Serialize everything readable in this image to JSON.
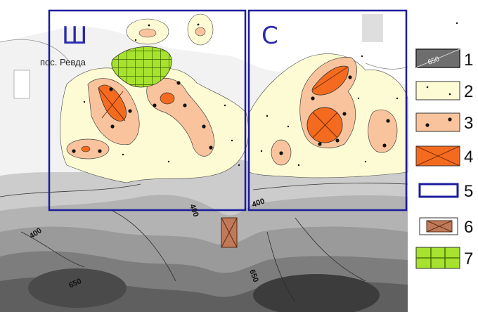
{
  "map": {
    "sector_labels": [
      "Ш",
      "С"
    ],
    "place_name": "пос. Ревда",
    "contour_labels": [
      "400",
      "400",
      "400",
      "650",
      "650"
    ]
  },
  "legend": {
    "items": [
      {
        "number": "1",
        "swatch_text": "650",
        "fill": "#6e6e6e",
        "kind": "relief"
      },
      {
        "number": "2",
        "fill": "#fdfbd4",
        "kind": "sparse-dots"
      },
      {
        "number": "3",
        "fill": "#f9c49d",
        "kind": "dots"
      },
      {
        "number": "4",
        "fill": "#f46b20",
        "kind": "cross"
      },
      {
        "number": "5",
        "fill": "#ffffff",
        "kind": "blue-frame"
      },
      {
        "number": "6",
        "fill": "#c07a5a",
        "kind": "brown-cross"
      },
      {
        "number": "7",
        "fill": "#a6e22e",
        "kind": "grid"
      }
    ]
  },
  "colors": {
    "frame_blue": "#1c1c9c",
    "zone_light": "#fdfbd4",
    "zone_medium": "#f9c49d",
    "zone_strong": "#f46b20",
    "green_area": "#a6e22e",
    "brown_area": "#c07a5a"
  }
}
